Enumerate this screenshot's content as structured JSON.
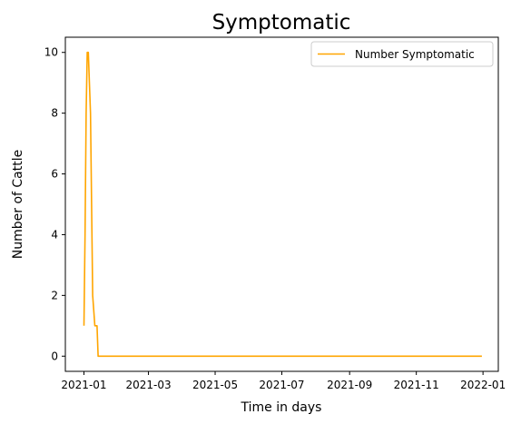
{
  "chart_data": {
    "type": "line",
    "title": "Symptomatic",
    "xlabel": "Time in days",
    "ylabel": "Number of Cattle",
    "xlim": [
      "2020-12-15",
      "2022-01-15"
    ],
    "ylim": [
      -0.5,
      10.5
    ],
    "x_ticks": [
      "2021-01",
      "2021-03",
      "2021-05",
      "2021-07",
      "2021-09",
      "2021-11",
      "2022-01"
    ],
    "y_ticks": [
      "0",
      "2",
      "4",
      "6",
      "8",
      "10"
    ],
    "y_tick_values": [
      0,
      2,
      4,
      6,
      8,
      10
    ],
    "legend": {
      "position": "upper right"
    },
    "series": [
      {
        "name": "Number Symptomatic",
        "color": "#ffa500",
        "x": [
          "2021-01-01",
          "2021-01-02",
          "2021-01-03",
          "2021-01-04",
          "2021-01-05",
          "2021-01-06",
          "2021-01-07",
          "2021-01-08",
          "2021-01-09",
          "2021-01-10",
          "2021-01-11",
          "2021-01-12",
          "2021-01-13",
          "2021-01-14",
          "2021-01-15",
          "2021-01-16",
          "2021-12-31"
        ],
        "values": [
          1,
          4,
          8,
          10,
          10,
          9,
          8,
          5,
          2,
          1.5,
          1,
          1,
          1,
          0,
          0,
          0,
          0
        ]
      }
    ]
  }
}
